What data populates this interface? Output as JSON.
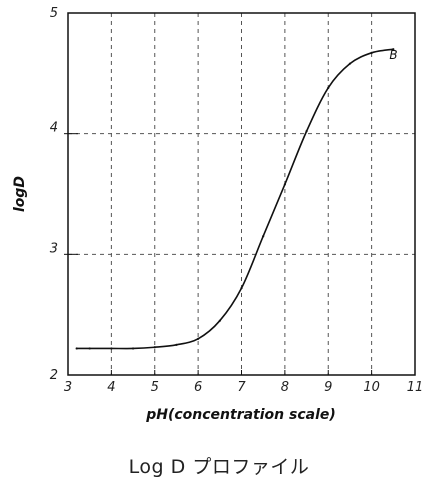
{
  "caption": "Log D プロファイル",
  "chart_data": {
    "type": "line",
    "title": "",
    "xlabel": "pH(concentration scale)",
    "ylabel": "logD",
    "xlim": [
      3,
      11
    ],
    "ylim": [
      2,
      5
    ],
    "x_ticks": [
      "3",
      "4",
      "5",
      "6",
      "7",
      "8",
      "9",
      "10",
      "11"
    ],
    "y_ticks": [
      "2",
      "3",
      "4",
      "5"
    ],
    "grid": "dashed",
    "series": [
      {
        "name": "B",
        "x": [
          3.2,
          3.5,
          4.0,
          4.5,
          5.0,
          5.5,
          6.0,
          6.5,
          7.0,
          7.5,
          8.0,
          8.5,
          9.0,
          9.5,
          10.0,
          10.5
        ],
        "y": [
          2.22,
          2.22,
          2.22,
          2.22,
          2.23,
          2.25,
          2.3,
          2.45,
          2.72,
          3.15,
          3.58,
          4.02,
          4.38,
          4.58,
          4.67,
          4.7
        ]
      }
    ],
    "colors": {
      "line": "#111111",
      "grid": "#555555"
    }
  }
}
